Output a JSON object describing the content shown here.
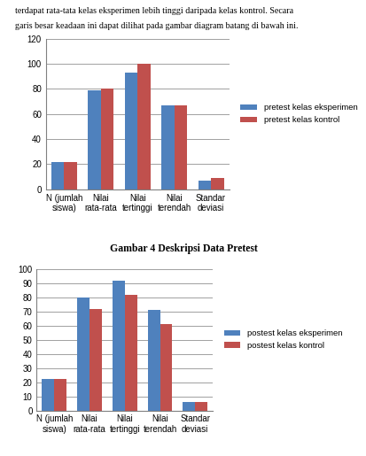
{
  "header": [
    "terdapat rata-tata kelas eksperimen lebih tinggi daripada kelas kontrol. Secara",
    "garis besar keadaan ini dapat dilihat pada gambar diagram batang di bawah ini."
  ],
  "caption": "Gambar 4 Deskripsi Data Pretest",
  "chart_data": [
    {
      "type": "bar",
      "categories": [
        "N (jumlah siswa)",
        "Nilai rata-rata",
        "Nilai tertinggi",
        "Nilai terendah",
        "Standar deviasi"
      ],
      "series": [
        {
          "name": "pretest kelas eksperimen",
          "color": "#4f81bd",
          "values": [
            22,
            79,
            93,
            67,
            7
          ]
        },
        {
          "name": "pretest kelas kontrol",
          "color": "#c0504d",
          "values": [
            22,
            80,
            100,
            67,
            9
          ]
        }
      ],
      "ylim": [
        0,
        120
      ],
      "yticks": [
        0,
        20,
        40,
        60,
        80,
        100,
        120
      ],
      "grid": true,
      "legend": "right"
    },
    {
      "type": "bar",
      "categories": [
        "N (jumlah siswa)",
        "Nilai rata-rata",
        "Nilai tertinggi",
        "Nilai terendah",
        "Standar deviasi"
      ],
      "series": [
        {
          "name": "postest kelas eksperimen",
          "color": "#4f81bd",
          "values": [
            22,
            80,
            92,
            71,
            6
          ]
        },
        {
          "name": "postest kelas kontrol",
          "color": "#c0504d",
          "values": [
            22,
            72,
            82,
            61,
            6
          ]
        }
      ],
      "ylim": [
        0,
        100
      ],
      "yticks": [
        0,
        10,
        20,
        30,
        40,
        50,
        60,
        70,
        80,
        90,
        100
      ],
      "grid": true,
      "legend": "right"
    }
  ]
}
